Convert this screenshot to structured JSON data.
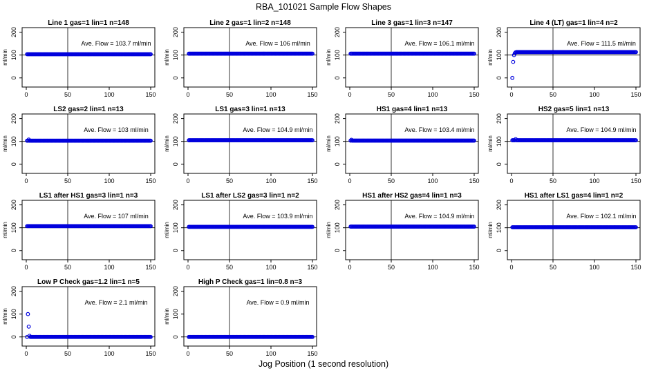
{
  "figure": {
    "title": "RBA_101021  Sample Flow Shapes",
    "xlabel": "Jog Position (1 second resolution)"
  },
  "chart_data": [
    {
      "type": "scatter",
      "title": "Line 1 gas=1 lin=1 n=148",
      "annotation": "Ave. Flow =  103.7  ml/min",
      "ylabel": "ml/min",
      "xlim": [
        0,
        150
      ],
      "ylim": [
        -40,
        220
      ],
      "xticks": [
        0,
        50,
        100,
        150
      ],
      "yticks": [
        0,
        100,
        200
      ],
      "hlines": [
        100
      ],
      "vline": 50,
      "n": 148,
      "steady": 103.7,
      "start": []
    },
    {
      "type": "scatter",
      "title": "Line 2 gas=1 lin=2 n=148",
      "annotation": "Ave. Flow =  106  ml/min",
      "ylabel": "ml/min",
      "xlim": [
        0,
        150
      ],
      "ylim": [
        -40,
        220
      ],
      "xticks": [
        0,
        50,
        100,
        150
      ],
      "yticks": [
        0,
        100,
        200
      ],
      "hlines": [
        100
      ],
      "vline": 50,
      "n": 148,
      "steady": 106,
      "start": []
    },
    {
      "type": "scatter",
      "title": "Line 3 gas=1 lin=3 n=147",
      "annotation": "Ave. Flow =  106.1  ml/min",
      "ylabel": "ml/min",
      "xlim": [
        0,
        150
      ],
      "ylim": [
        -40,
        220
      ],
      "xticks": [
        0,
        50,
        100,
        150
      ],
      "yticks": [
        0,
        100,
        200
      ],
      "hlines": [
        100
      ],
      "vline": 50,
      "n": 147,
      "steady": 106.1,
      "start": []
    },
    {
      "type": "scatter",
      "title": "Line 4 (LT) gas=1 lin=4 n=2",
      "annotation": "Ave. Flow =  111.5  ml/min",
      "ylabel": "ml/min",
      "xlim": [
        0,
        150
      ],
      "ylim": [
        -40,
        220
      ],
      "xticks": [
        0,
        50,
        100,
        150
      ],
      "yticks": [
        0,
        100,
        200
      ],
      "hlines": [
        100
      ],
      "vline": 50,
      "n": 150,
      "steady": 113,
      "start": [
        1,
        0,
        2,
        70,
        3,
        100,
        4,
        108,
        5,
        112
      ]
    },
    {
      "type": "scatter",
      "title": "LS2 gas=2 lin=1 n=13",
      "annotation": "Ave. Flow =  103  ml/min",
      "ylabel": "ml/min",
      "xlim": [
        0,
        150
      ],
      "ylim": [
        -40,
        220
      ],
      "xticks": [
        0,
        50,
        100,
        150
      ],
      "yticks": [
        0,
        100,
        200
      ],
      "hlines": [
        100
      ],
      "vline": 50,
      "n": 148,
      "steady": 103,
      "start": [
        3,
        108
      ]
    },
    {
      "type": "scatter",
      "title": "LS1 gas=3 lin=1 n=13",
      "annotation": "Ave. Flow =  104.9  ml/min",
      "ylabel": "ml/min",
      "xlim": [
        0,
        150
      ],
      "ylim": [
        -40,
        220
      ],
      "xticks": [
        0,
        50,
        100,
        150
      ],
      "yticks": [
        0,
        100,
        200
      ],
      "hlines": [
        100
      ],
      "vline": 50,
      "n": 148,
      "steady": 104.9,
      "start": []
    },
    {
      "type": "scatter",
      "title": "HS1 gas=4 lin=1 n=13",
      "annotation": "Ave. Flow =  103.4  ml/min",
      "ylabel": "ml/min",
      "xlim": [
        0,
        150
      ],
      "ylim": [
        -40,
        220
      ],
      "xticks": [
        0,
        50,
        100,
        150
      ],
      "yticks": [
        0,
        100,
        200
      ],
      "hlines": [
        100
      ],
      "vline": 50,
      "n": 148,
      "steady": 103.4,
      "start": [
        2,
        107
      ]
    },
    {
      "type": "scatter",
      "title": "HS2 gas=5 lin=1 n=13",
      "annotation": "Ave. Flow =  104.9  ml/min",
      "ylabel": "ml/min",
      "xlim": [
        0,
        150
      ],
      "ylim": [
        -40,
        220
      ],
      "xticks": [
        0,
        50,
        100,
        150
      ],
      "yticks": [
        0,
        100,
        200
      ],
      "hlines": [
        100
      ],
      "vline": 50,
      "n": 148,
      "steady": 104.9,
      "start": [
        5,
        110
      ]
    },
    {
      "type": "scatter",
      "title": "LS1 after HS1 gas=3 lin=1 n=3",
      "annotation": "Ave. Flow =  107  ml/min",
      "ylabel": "ml/min",
      "xlim": [
        0,
        150
      ],
      "ylim": [
        -40,
        220
      ],
      "xticks": [
        0,
        50,
        100,
        150
      ],
      "yticks": [
        0,
        100,
        200
      ],
      "hlines": [
        100
      ],
      "vline": 50,
      "n": 148,
      "steady": 107,
      "start": []
    },
    {
      "type": "scatter",
      "title": "LS1 after LS2 gas=3 lin=1 n=2",
      "annotation": "Ave. Flow =  103.9  ml/min",
      "ylabel": "ml/min",
      "xlim": [
        0,
        150
      ],
      "ylim": [
        -40,
        220
      ],
      "xticks": [
        0,
        50,
        100,
        150
      ],
      "yticks": [
        0,
        100,
        200
      ],
      "hlines": [
        100
      ],
      "vline": 50,
      "n": 148,
      "steady": 103.9,
      "start": []
    },
    {
      "type": "scatter",
      "title": "HS1 after HS2 gas=4 lin=1 n=3",
      "annotation": "Ave. Flow =  104.9  ml/min",
      "ylabel": "ml/min",
      "xlim": [
        0,
        150
      ],
      "ylim": [
        -40,
        220
      ],
      "xticks": [
        0,
        50,
        100,
        150
      ],
      "yticks": [
        0,
        100,
        200
      ],
      "hlines": [
        100
      ],
      "vline": 50,
      "n": 148,
      "steady": 104.9,
      "start": []
    },
    {
      "type": "scatter",
      "title": "HS1 after LS1 gas=4 lin=1 n=2",
      "annotation": "Ave. Flow =  102.1  ml/min",
      "ylabel": "ml/min",
      "xlim": [
        0,
        150
      ],
      "ylim": [
        -40,
        220
      ],
      "xticks": [
        0,
        50,
        100,
        150
      ],
      "yticks": [
        0,
        100,
        200
      ],
      "hlines": [
        100
      ],
      "vline": 50,
      "n": 148,
      "steady": 102.1,
      "start": []
    },
    {
      "type": "scatter",
      "title": "Low P Check gas=1.2 lin=1 n=5",
      "annotation": "Ave. Flow =  2.1  ml/min",
      "ylabel": "ml/min",
      "xlim": [
        0,
        150
      ],
      "ylim": [
        -40,
        220
      ],
      "xticks": [
        0,
        50,
        100,
        150
      ],
      "yticks": [
        0,
        100,
        200
      ],
      "hlines": [
        0
      ],
      "vline": 50,
      "n": 148,
      "steady": 0,
      "start": [
        2,
        100,
        3,
        45,
        4,
        5
      ]
    },
    {
      "type": "scatter",
      "title": "High P Check gas=1 lin=0.8 n=3",
      "annotation": "Ave. Flow =  0.9  ml/min",
      "ylabel": "ml/min",
      "xlim": [
        0,
        150
      ],
      "ylim": [
        -40,
        220
      ],
      "xticks": [
        0,
        50,
        100,
        150
      ],
      "yticks": [
        0,
        100,
        200
      ],
      "hlines": [
        0
      ],
      "vline": 50,
      "n": 148,
      "steady": 0,
      "start": []
    }
  ],
  "colors": {
    "points": "#0000dd",
    "axes": "#000000"
  }
}
